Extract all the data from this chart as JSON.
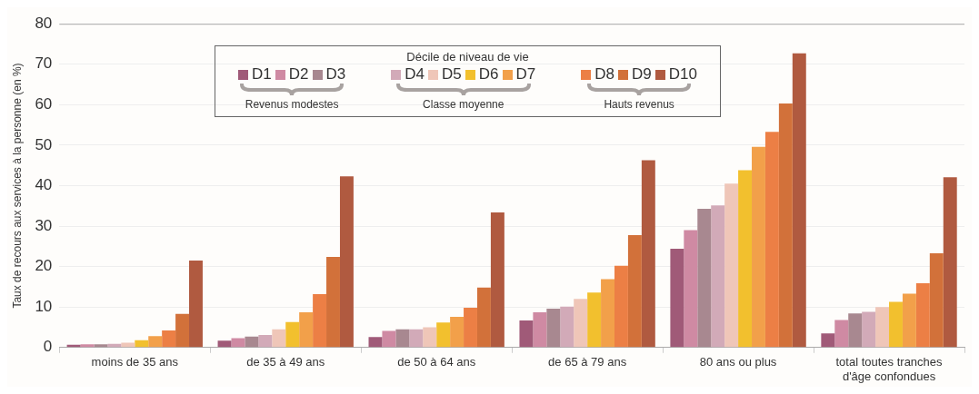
{
  "chart_data": {
    "type": "bar",
    "ylabel": "Taux de recours aux services à la personne (en %)",
    "legend_title": "Décile de niveau de vie",
    "legend": "top",
    "grid": "y",
    "categories": [
      "moins de 35 ans",
      "de 35 à 49 ans",
      "de 50 à 64 ans",
      "de 65 à 79 ans",
      "80 ans ou plus",
      "total toutes tranches d'âge confondues"
    ],
    "ylim": [
      0,
      80
    ],
    "yticks": [
      0,
      10,
      20,
      30,
      40,
      50,
      60,
      70,
      80
    ],
    "annotations": [
      "Revenus modestes",
      "Classe moyenne",
      "Hauts revenus"
    ],
    "series": [
      {
        "name": "D1",
        "color": "#a05a78",
        "values": [
          0.7,
          1.7,
          2.6,
          6.7,
          24.4,
          3.5
        ]
      },
      {
        "name": "D2",
        "color": "#cf8aa3",
        "values": [
          0.8,
          2.3,
          4.1,
          8.7,
          29,
          6.8
        ]
      },
      {
        "name": "D3",
        "color": "#a88890",
        "values": [
          0.8,
          2.7,
          4.5,
          9.6,
          34.3,
          8.4
        ]
      },
      {
        "name": "D4",
        "color": "#d2aab8",
        "values": [
          0.9,
          3.1,
          4.5,
          10.1,
          35.1,
          8.8
        ]
      },
      {
        "name": "D5",
        "color": "#efc6b8",
        "values": [
          1.2,
          4.5,
          5,
          12,
          40.5,
          10
        ]
      },
      {
        "name": "D6",
        "color": "#f2c02e",
        "values": [
          1.8,
          6.3,
          6.2,
          13.6,
          43.8,
          11.3
        ]
      },
      {
        "name": "D7",
        "color": "#f2a04a",
        "values": [
          2.8,
          8.7,
          7.6,
          16.9,
          49.6,
          13.3
        ]
      },
      {
        "name": "D8",
        "color": "#ec7f45",
        "values": [
          4.2,
          13.2,
          9.8,
          20.2,
          53.3,
          15.9
        ]
      },
      {
        "name": "D9",
        "color": "#d2713a",
        "values": [
          8.3,
          22.4,
          14.8,
          27.8,
          60.3,
          23.3
        ]
      },
      {
        "name": "D10",
        "color": "#b05a40",
        "values": [
          21.5,
          42.3,
          33.4,
          46.3,
          72.7,
          42.1
        ]
      }
    ]
  }
}
